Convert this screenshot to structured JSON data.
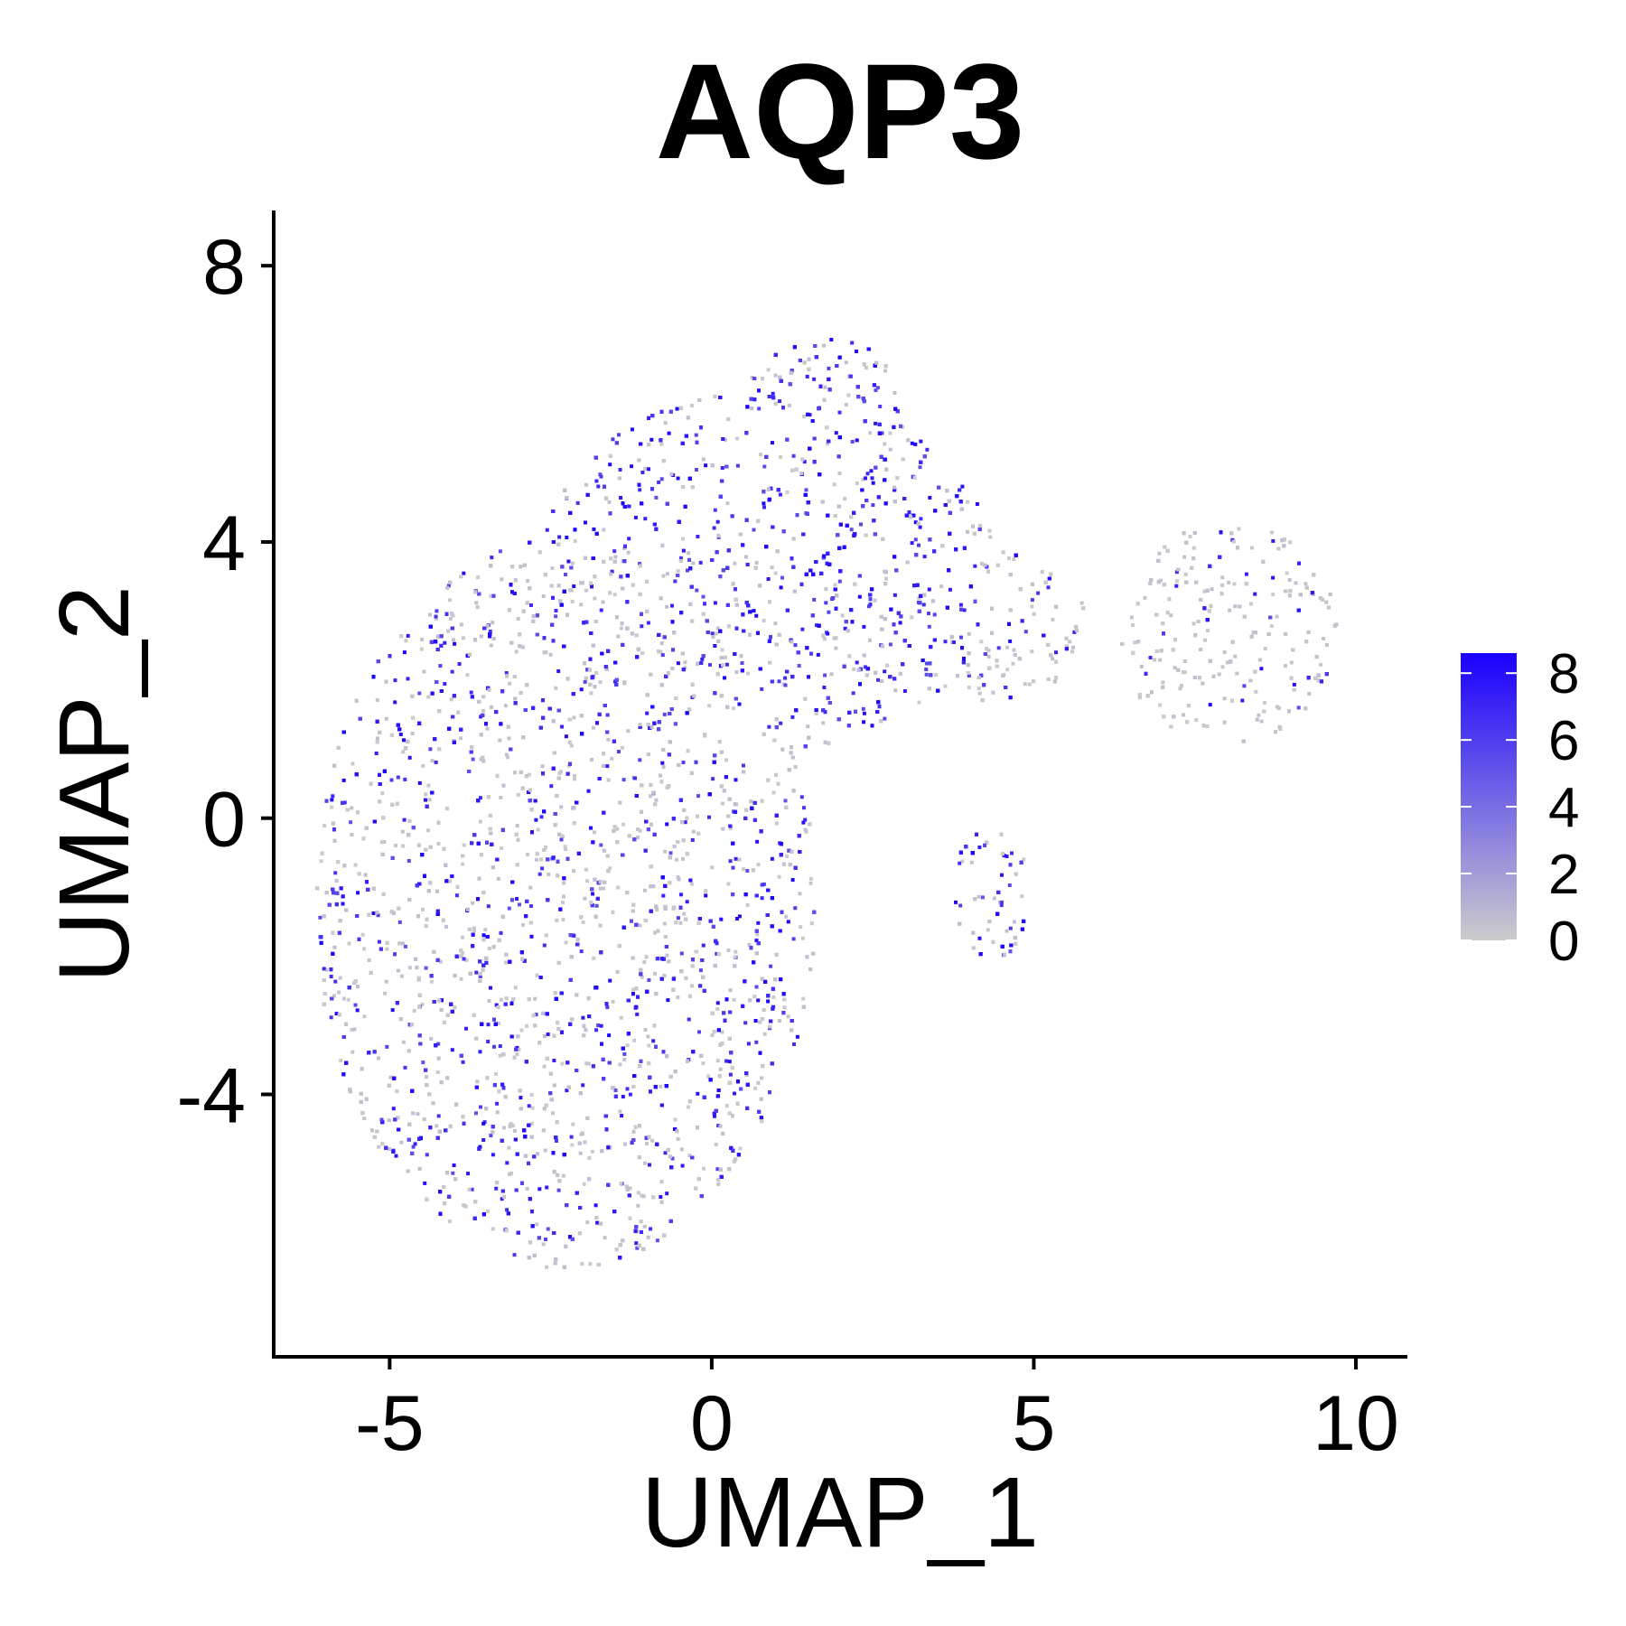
{
  "chart_data": {
    "type": "scatter",
    "title": "AQP3",
    "xlabel": "UMAP_1",
    "ylabel": "UMAP_2",
    "xlim": [
      -6.8,
      10.8
    ],
    "ylim": [
      -7.8,
      8.8
    ],
    "x_ticks": [
      -5,
      0,
      5,
      10
    ],
    "x_tick_labels": [
      "-5",
      "0",
      "5",
      "10"
    ],
    "y_ticks": [
      -4,
      0,
      4,
      8
    ],
    "y_tick_labels": [
      "-4",
      "0",
      "4",
      "8"
    ],
    "grid": false,
    "legend_position": "right",
    "color_scale": {
      "low_color": "#cccccc",
      "high_color": "#1a00ff",
      "range": [
        0,
        8.6
      ],
      "ticks": [
        0,
        2,
        4,
        6,
        8
      ],
      "tick_labels": [
        "0",
        "2",
        "4",
        "6",
        "8"
      ]
    },
    "regions": [
      {
        "name": "main",
        "center_x": -2.3,
        "center_y": -1.2,
        "radius_x": 3.9,
        "radius_y": 5.3,
        "mean_expression": 3.8
      },
      {
        "name": "upper",
        "center_x": 0.8,
        "center_y": 3.6,
        "radius_x": 3.6,
        "radius_y": 2.6,
        "mean_expression": 5.8
      },
      {
        "name": "top-lobe",
        "center_x": 1.7,
        "center_y": 6.1,
        "radius_x": 1.2,
        "radius_y": 0.9,
        "mean_expression": 6.0
      },
      {
        "name": "bridge",
        "center_x": 4.3,
        "center_y": 2.8,
        "radius_x": 1.5,
        "radius_y": 1.1,
        "mean_expression": 2.5
      },
      {
        "name": "small-lobe",
        "center_x": 4.3,
        "center_y": -1.0,
        "radius_x": 0.6,
        "radius_y": 1.1,
        "mean_expression": 4.5
      },
      {
        "name": "right-cluster",
        "center_x": 8.0,
        "center_y": 2.7,
        "radius_x": 1.7,
        "radius_y": 1.6,
        "mean_expression": 0.8
      }
    ]
  }
}
